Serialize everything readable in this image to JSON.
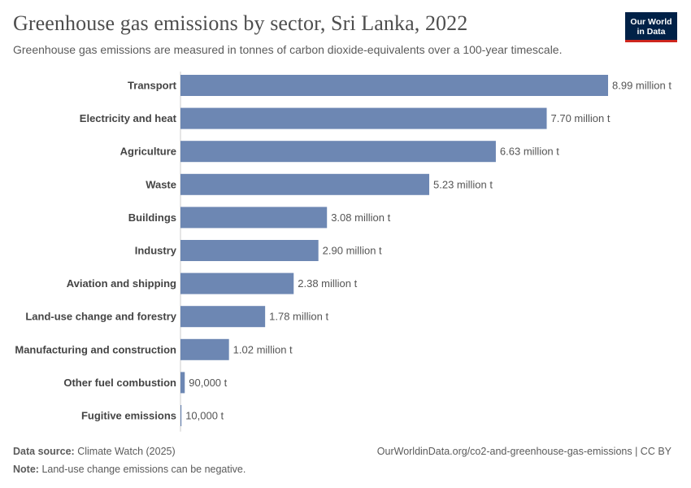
{
  "header": {
    "title": "Greenhouse gas emissions by sector, Sri Lanka, 2022",
    "subtitle": "Greenhouse gas emissions are measured in tonnes of carbon dioxide-equivalents over a 100-year timescale."
  },
  "logo": {
    "line1": "Our World",
    "line2": "in Data"
  },
  "footer": {
    "source_label": "Data source:",
    "source_value": "Climate Watch (2025)",
    "note_label": "Note:",
    "note_value": "Land-use change emissions can be negative.",
    "url": "OurWorldinData.org/co2-and-greenhouse-gas-emissions | CC BY"
  },
  "colors": {
    "bar": "#6d87b3",
    "axis": "#cccccc"
  },
  "chart_data": {
    "type": "bar",
    "orientation": "horizontal",
    "title": "Greenhouse gas emissions by sector, Sri Lanka, 2022",
    "unit": "tonnes CO2-equivalent",
    "categories": [
      "Transport",
      "Electricity and heat",
      "Agriculture",
      "Waste",
      "Buildings",
      "Industry",
      "Aviation and shipping",
      "Land-use change and forestry",
      "Manufacturing and construction",
      "Other fuel combustion",
      "Fugitive emissions"
    ],
    "values": [
      8990000,
      7700000,
      6630000,
      5230000,
      3080000,
      2900000,
      2380000,
      1780000,
      1020000,
      90000,
      10000
    ],
    "value_labels": [
      "8.99 million t",
      "7.70 million t",
      "6.63 million t",
      "5.23 million t",
      "3.08 million t",
      "2.90 million t",
      "2.38 million t",
      "1.78 million t",
      "1.02 million t",
      "90,000 t",
      "10,000 t"
    ],
    "xlim": [
      0,
      8990000
    ]
  }
}
